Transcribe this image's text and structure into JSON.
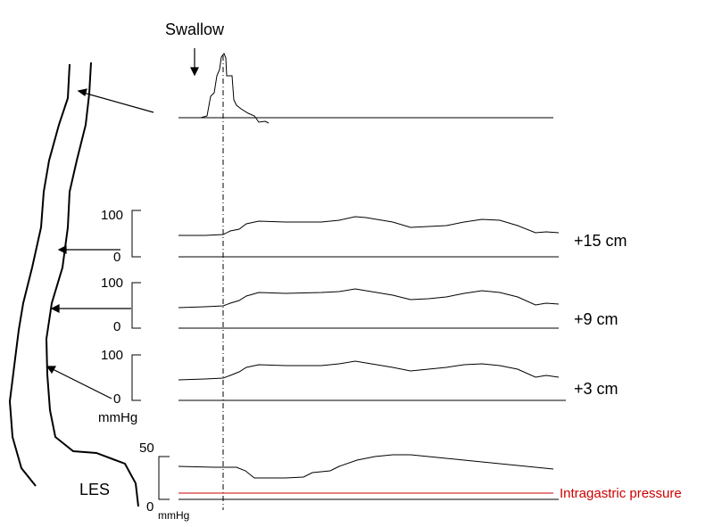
{
  "swallow_label": "Swallow",
  "les_label": "LES",
  "intragastric_label": "Intragastric pressure",
  "channels": [
    {
      "position_label": "+15 cm",
      "scale_top": "100",
      "scale_bottom": "0",
      "unit": ""
    },
    {
      "position_label": "+9 cm",
      "scale_top": "100",
      "scale_bottom": "0",
      "unit": ""
    },
    {
      "position_label": "+3 cm",
      "scale_top": "100",
      "scale_bottom": "0",
      "unit": "mmHg"
    }
  ],
  "les_channel": {
    "scale_top": "50",
    "scale_bottom": "0",
    "unit": "mmHg"
  },
  "colors": {
    "trace": "#000000",
    "intragastric": "#cc0000"
  }
}
